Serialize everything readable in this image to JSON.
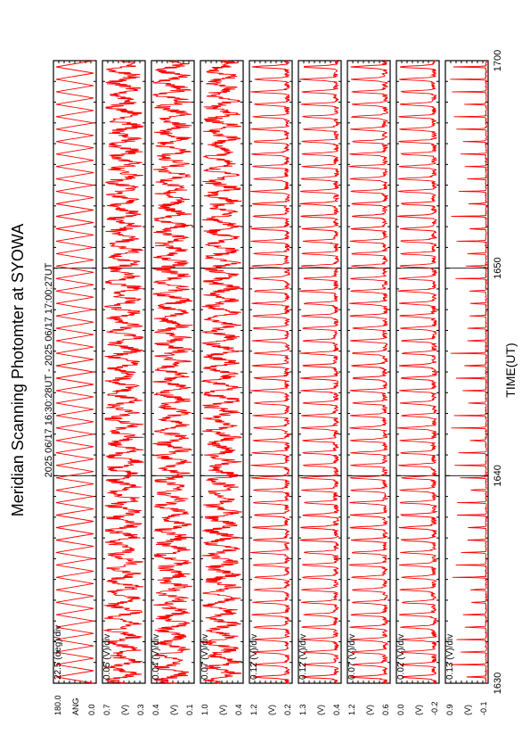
{
  "title": "Meridian Scanning Photomter at SYOWA",
  "time_range": "2025 06/17 16:30:28UT - 2025 06/17 17:00:27UT",
  "xlabel": "TIME(UT)",
  "colors": {
    "trace": "#ff0000",
    "axis": "#000000",
    "background": "#ffffff"
  },
  "chart_data": {
    "type": "line",
    "rotated": "90deg-ccw",
    "x_ticks": [
      "1630",
      "1640",
      "1650",
      "1700"
    ],
    "panels": [
      {
        "name": "ANG",
        "scale": "22.5 (deg)/div",
        "top_label": "180.0",
        "bottom_label": "0.0",
        "ylim": [
          0.0,
          180.0
        ],
        "pattern": "triangle",
        "cycles": 50
      },
      {
        "name": "(V)",
        "scale": "0.05 (V)/div",
        "top_label": "0.7",
        "bottom_label": "0.3",
        "ylim": [
          0.3,
          0.7
        ],
        "pattern": "noisy",
        "cycles": 50
      },
      {
        "name": "(V)",
        "scale": "0.04 (V)/div",
        "top_label": "0.4",
        "bottom_label": "0.1",
        "ylim": [
          0.1,
          0.4
        ],
        "pattern": "noisy",
        "cycles": 50
      },
      {
        "name": "(V)",
        "scale": "0.07 (V)/div",
        "top_label": "1.0",
        "bottom_label": "0.4",
        "ylim": [
          0.4,
          1.0
        ],
        "pattern": "noisy",
        "cycles": 50
      },
      {
        "name": "(V)",
        "scale": "0.12 (V)/div",
        "top_label": "1.2",
        "bottom_label": "0.2",
        "ylim": [
          0.2,
          1.2
        ],
        "pattern": "spiky",
        "cycles": 50
      },
      {
        "name": "(V)",
        "scale": "0.12 (V)/div",
        "top_label": "1.3",
        "bottom_label": "0.4",
        "ylim": [
          0.4,
          1.3
        ],
        "pattern": "spiky",
        "cycles": 50
      },
      {
        "name": "(V)",
        "scale": "0.07 (V)/div",
        "top_label": "1.2",
        "bottom_label": "0.6",
        "ylim": [
          0.6,
          1.2
        ],
        "pattern": "spiky",
        "cycles": 50
      },
      {
        "name": "(V)",
        "scale": "0.02 (V)/div",
        "top_label": "0.0",
        "bottom_label": "-0.2",
        "ylim": [
          -0.2,
          0.0
        ],
        "pattern": "spiky",
        "cycles": 50
      },
      {
        "name": "(V)",
        "scale": "0.13 (V)/div",
        "top_label": "0.9",
        "bottom_label": "-0.1",
        "ylim": [
          -0.1,
          0.9
        ],
        "pattern": "impulse",
        "cycles": 50
      }
    ]
  }
}
